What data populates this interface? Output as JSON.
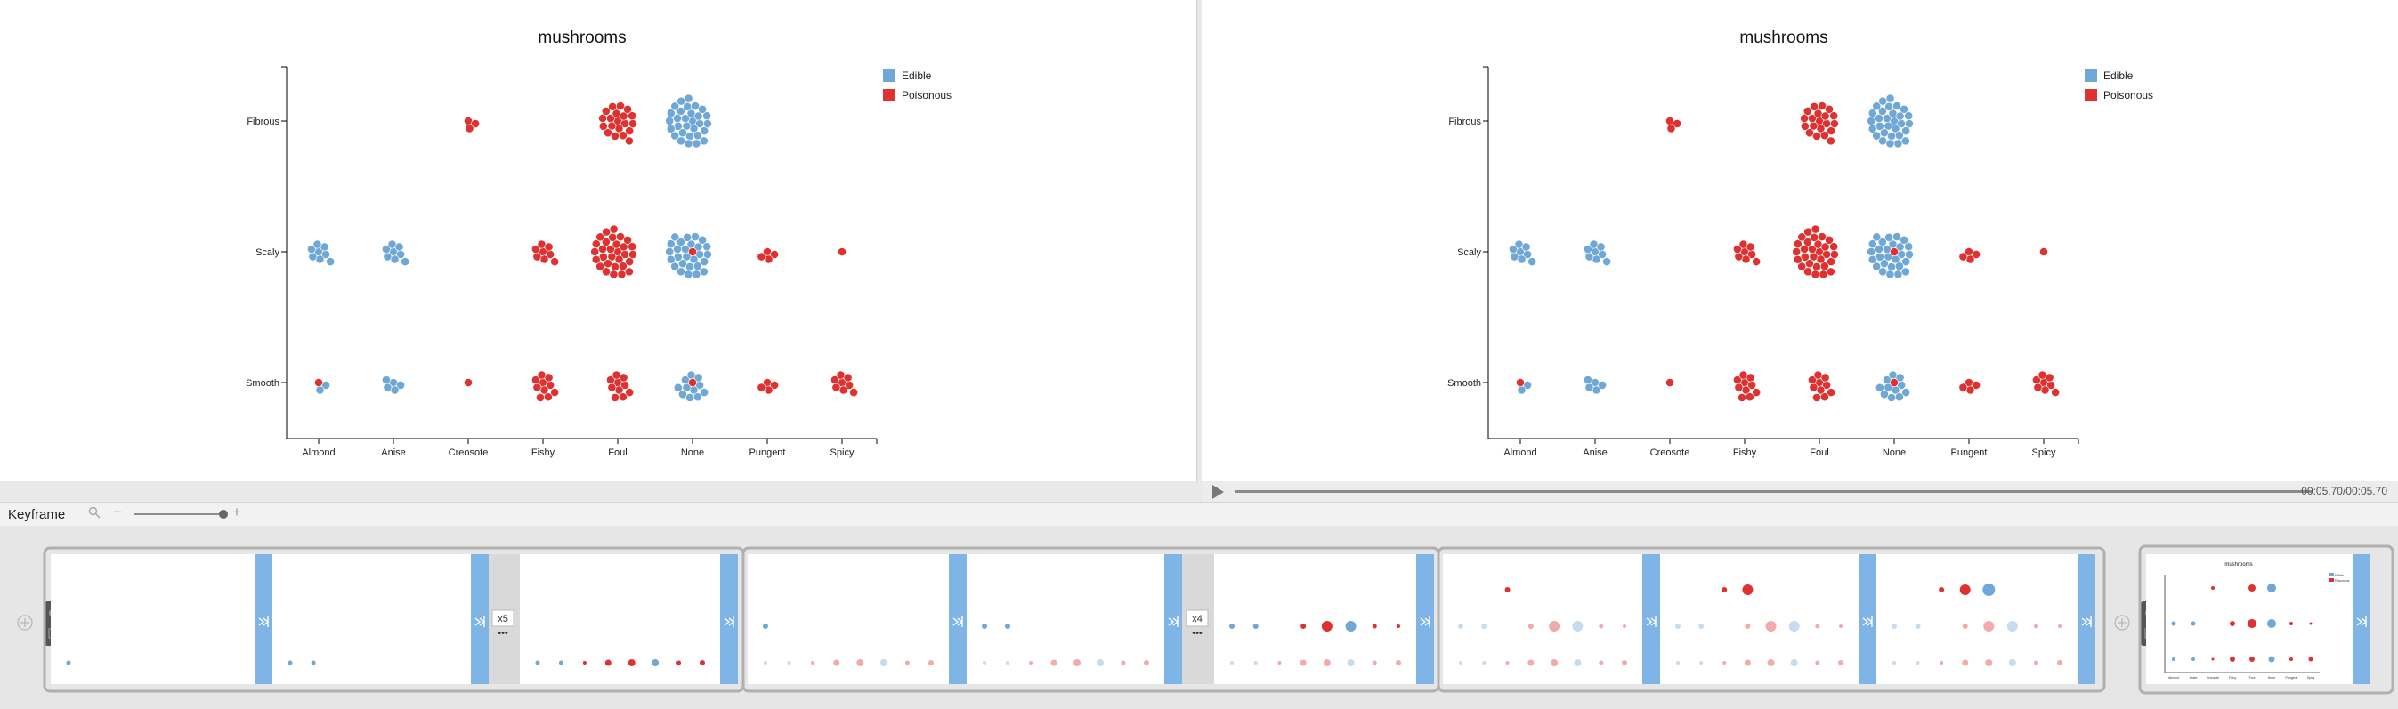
{
  "app": {
    "keyframe_label": "Keyframe",
    "time_readout": "00:05.70/00:05.70",
    "zoom_level": 0.92
  },
  "colors": {
    "edible": "#6fa8d6",
    "poisonous": "#e03131",
    "transition": "#7fb4e6",
    "edible_faded": "#c7dcef",
    "poisonous_faded": "#f2aaaa"
  },
  "timeline": {
    "group1_repeat": "x5",
    "group2_repeat": "x4",
    "transition_icon": "skip-forward-icon",
    "add_icon": "plus-circle-icon"
  },
  "chart_data": [
    {
      "type": "scatter",
      "title": "mushrooms",
      "x_categories": [
        "Almond",
        "Anise",
        "Creosote",
        "Fishy",
        "Foul",
        "None",
        "Pungent",
        "Spicy"
      ],
      "y_categories": [
        "Smooth",
        "Scaly",
        "Fibrous"
      ],
      "legend": [
        {
          "label": "Edible",
          "color": "#6fa8d6"
        },
        {
          "label": "Poisonous",
          "color": "#e03131"
        }
      ],
      "legend_position": "top-right",
      "series": [
        {
          "name": "Edible",
          "points": [
            [
              "None",
              "Fibrous",
              30
            ],
            [
              "Almond",
              "Scaly",
              8
            ],
            [
              "Anise",
              "Scaly",
              8
            ],
            [
              "None",
              "Scaly",
              28
            ],
            [
              "Almond",
              "Smooth",
              3
            ],
            [
              "Anise",
              "Smooth",
              5
            ],
            [
              "None",
              "Smooth",
              12
            ]
          ]
        },
        {
          "name": "Poisonous",
          "points": [
            [
              "Creosote",
              "Fibrous",
              3
            ],
            [
              "Foul",
              "Fibrous",
              20
            ],
            [
              "Fishy",
              "Scaly",
              8
            ],
            [
              "Foul",
              "Scaly",
              30
            ],
            [
              "None",
              "Scaly",
              1
            ],
            [
              "Pungent",
              "Scaly",
              4
            ],
            [
              "Spicy",
              "Scaly",
              1
            ],
            [
              "Almond",
              "Smooth",
              1
            ],
            [
              "Creosote",
              "Smooth",
              1
            ],
            [
              "Fishy",
              "Smooth",
              10
            ],
            [
              "Foul",
              "Smooth",
              10
            ],
            [
              "None",
              "Smooth",
              1
            ],
            [
              "Pungent",
              "Smooth",
              4
            ],
            [
              "Spicy",
              "Smooth",
              8
            ]
          ]
        }
      ]
    },
    {
      "type": "scatter",
      "title": "mushrooms",
      "x_categories": [
        "Almond",
        "Anise",
        "Creosote",
        "Fishy",
        "Foul",
        "None",
        "Pungent",
        "Spicy"
      ],
      "y_categories": [
        "Smooth",
        "Scaly",
        "Fibrous"
      ],
      "legend": [
        {
          "label": "Edible",
          "color": "#6fa8d6"
        },
        {
          "label": "Poisonous",
          "color": "#e03131"
        }
      ],
      "legend_position": "top-right",
      "series": [
        {
          "name": "Edible",
          "points": [
            [
              "None",
              "Fibrous",
              30
            ],
            [
              "Almond",
              "Scaly",
              8
            ],
            [
              "Anise",
              "Scaly",
              8
            ],
            [
              "None",
              "Scaly",
              28
            ],
            [
              "Almond",
              "Smooth",
              3
            ],
            [
              "Anise",
              "Smooth",
              5
            ],
            [
              "None",
              "Smooth",
              12
            ]
          ]
        },
        {
          "name": "Poisonous",
          "points": [
            [
              "Creosote",
              "Fibrous",
              3
            ],
            [
              "Foul",
              "Fibrous",
              20
            ],
            [
              "Fishy",
              "Scaly",
              8
            ],
            [
              "Foul",
              "Scaly",
              30
            ],
            [
              "None",
              "Scaly",
              1
            ],
            [
              "Pungent",
              "Scaly",
              4
            ],
            [
              "Spicy",
              "Scaly",
              1
            ],
            [
              "Almond",
              "Smooth",
              1
            ],
            [
              "Creosote",
              "Smooth",
              1
            ],
            [
              "Fishy",
              "Smooth",
              10
            ],
            [
              "Foul",
              "Smooth",
              10
            ],
            [
              "None",
              "Smooth",
              1
            ],
            [
              "Pungent",
              "Smooth",
              4
            ],
            [
              "Spicy",
              "Smooth",
              8
            ]
          ]
        }
      ]
    }
  ]
}
